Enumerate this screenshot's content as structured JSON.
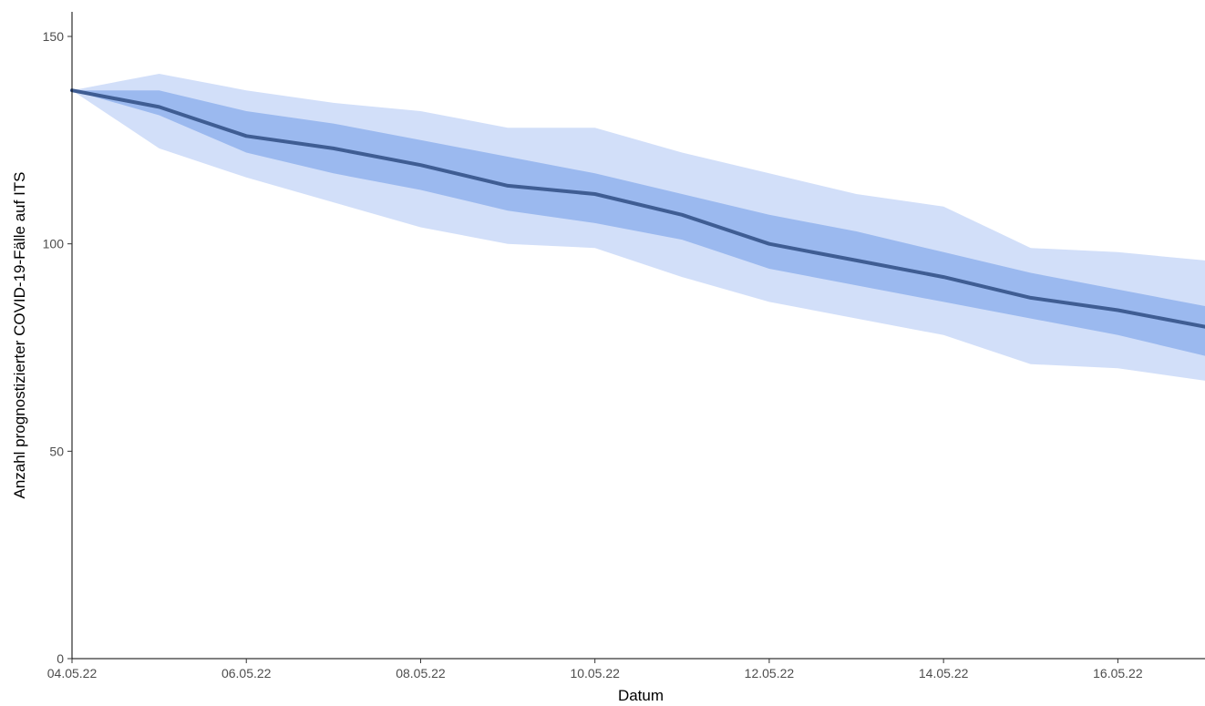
{
  "chart_data": {
    "type": "area",
    "title": "",
    "xlabel": "Datum",
    "ylabel": "Anzahl prognostizierter COVID-19-Fälle auf ITS",
    "x": [
      "04.05.22",
      "05.05.22",
      "06.05.22",
      "07.05.22",
      "08.05.22",
      "09.05.22",
      "10.05.22",
      "11.05.22",
      "12.05.22",
      "13.05.22",
      "14.05.22",
      "15.05.22",
      "16.05.22",
      "17.05.22"
    ],
    "x_tick_labels": [
      "04.05.22",
      "06.05.22",
      "08.05.22",
      "10.05.22",
      "12.05.22",
      "14.05.22",
      "16.05.22"
    ],
    "y_ticks": [
      0,
      50,
      100,
      150
    ],
    "ylim": [
      0,
      150
    ],
    "grid": false,
    "legend": "none",
    "series": [
      {
        "role": "median",
        "values": [
          137,
          133,
          126,
          123,
          119,
          114,
          112,
          107,
          100,
          96,
          92,
          87,
          84,
          80
        ]
      },
      {
        "role": "inner-band",
        "lower": [
          137,
          131,
          122,
          117,
          113,
          108,
          105,
          101,
          94,
          90,
          86,
          82,
          78,
          73
        ],
        "upper": [
          137,
          137,
          132,
          129,
          125,
          121,
          117,
          112,
          107,
          103,
          98,
          93,
          89,
          85
        ]
      },
      {
        "role": "outer-band",
        "lower": [
          137,
          123,
          116,
          110,
          104,
          100,
          99,
          92,
          86,
          82,
          78,
          71,
          70,
          67
        ],
        "upper": [
          137,
          141,
          137,
          134,
          132,
          128,
          128,
          122,
          117,
          112,
          109,
          99,
          98,
          96
        ]
      }
    ],
    "colors": {
      "outer_band": "#d2dff9",
      "inner_band": "#9bb9ef",
      "median_line": "#3f5d93",
      "axis": "#000000",
      "tick_label": "#4d4d4d"
    }
  }
}
